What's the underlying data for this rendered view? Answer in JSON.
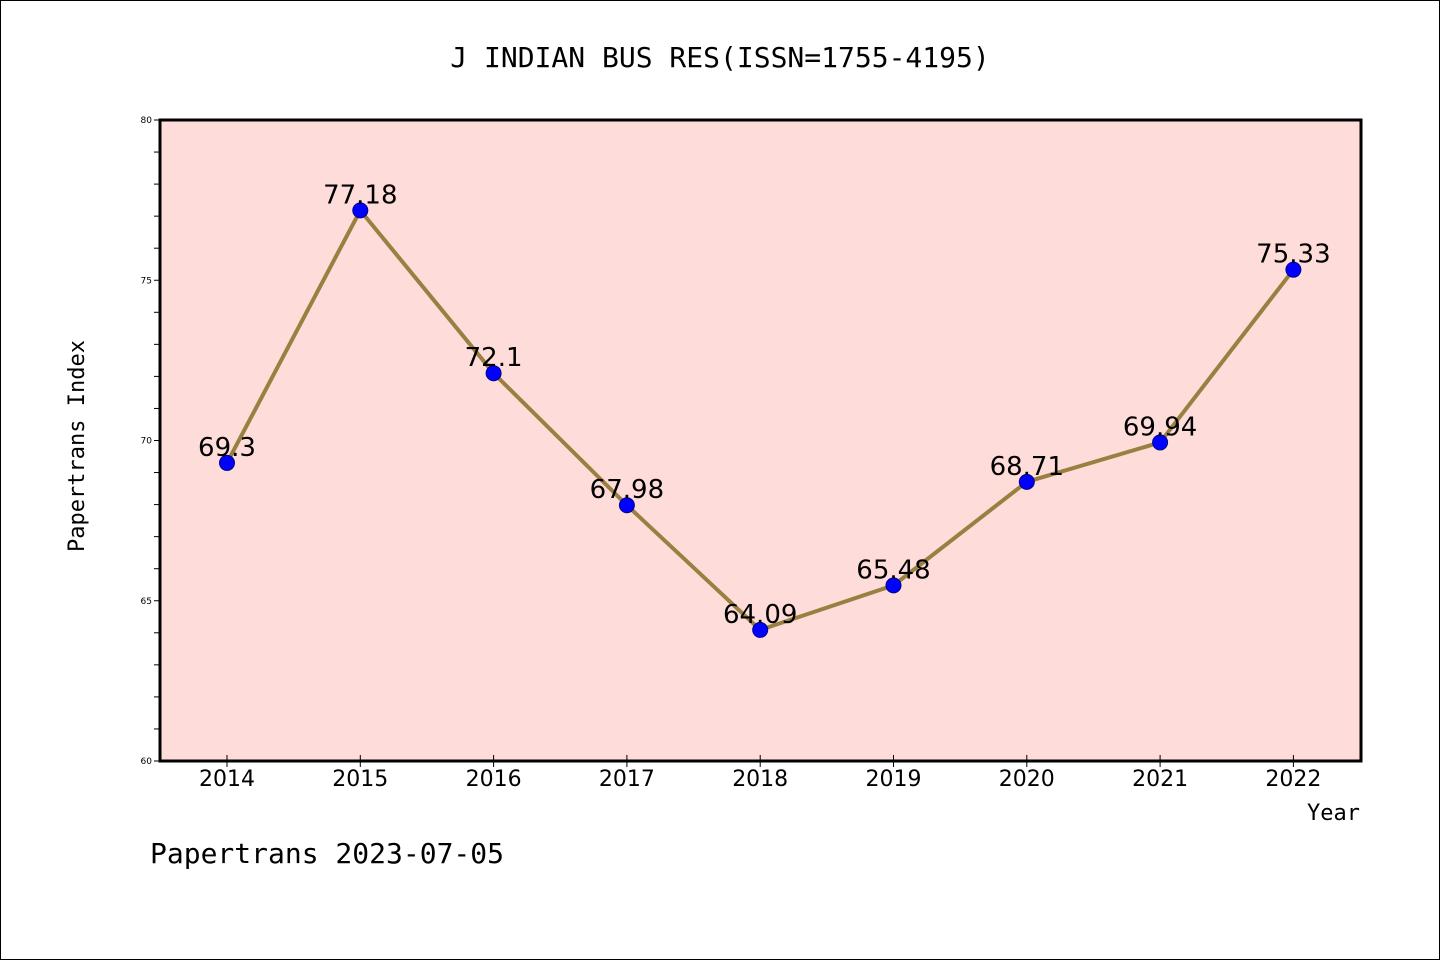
{
  "chart_data": {
    "type": "line",
    "title": "J INDIAN BUS RES(ISSN=1755-4195)",
    "xlabel": "Year",
    "ylabel": "Papertrans Index",
    "categories": [
      "2014",
      "2015",
      "2016",
      "2017",
      "2018",
      "2019",
      "2020",
      "2021",
      "2022"
    ],
    "series": [
      {
        "values": [
          69.3,
          77.18,
          72.1,
          67.98,
          64.09,
          65.48,
          68.71,
          69.94,
          75.33
        ],
        "labels": [
          "69.3",
          "77.18",
          "72.1",
          "67.98",
          "64.09",
          "65.48",
          "68.71",
          "69.94",
          "75.33"
        ],
        "line_color": "#9a8040",
        "marker_color": "#0000ff"
      }
    ],
    "ylim": [
      60,
      80
    ],
    "yticks": [
      "60",
      "65",
      "70",
      "75",
      "80"
    ],
    "plot_background": "#fddcd9",
    "grid": false,
    "legend": "none"
  },
  "footer": {
    "text": "Papertrans 2023-07-05"
  }
}
